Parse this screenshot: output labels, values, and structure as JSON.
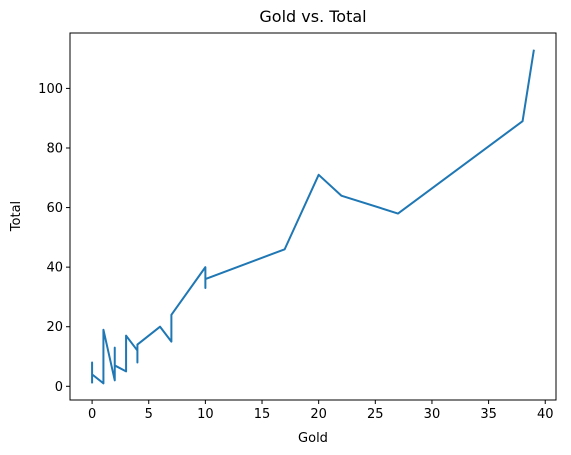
{
  "chart_data": {
    "type": "line",
    "title": "Gold vs. Total",
    "xlabel": "Gold",
    "ylabel": "Total",
    "xlim": [
      -1.95,
      40.95
    ],
    "ylim": [
      -4.6,
      118.6
    ],
    "xticks": [
      0,
      5,
      10,
      15,
      20,
      25,
      30,
      35,
      40
    ],
    "yticks": [
      0,
      20,
      40,
      60,
      80,
      100
    ],
    "grid": false,
    "legend": false,
    "color": "#1f77b4",
    "series": [
      {
        "x": [
          0,
          0,
          0,
          1,
          1,
          2,
          2,
          2,
          3,
          3,
          4,
          4,
          4,
          6,
          7,
          7,
          10,
          10,
          10,
          17,
          20,
          22,
          27,
          38,
          39
        ],
        "y": [
          1,
          8,
          4,
          1,
          19,
          2,
          13,
          7,
          5,
          17,
          12,
          8,
          14,
          20,
          15,
          24,
          40,
          33,
          36,
          46,
          71,
          64,
          58,
          89,
          113
        ]
      }
    ]
  }
}
